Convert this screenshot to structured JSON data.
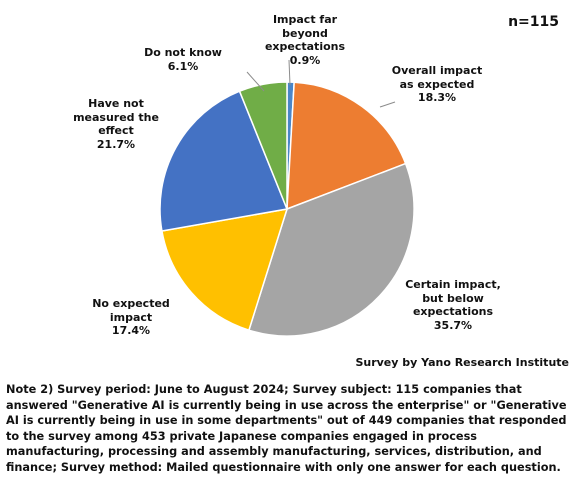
{
  "sample_size": "n=115",
  "source": "Survey by Yano Research Institute",
  "note": "Note 2) Survey period: June to August 2024; Survey subject: 115 companies that answered \"Generative AI is currently being in use across the enterprise\" or \"Generative AI is currently being in use in some departments\" out of 449 companies that responded to the survey among 453 private Japanese companies engaged in process manufacturing, processing and assembly manufacturing, services, distribution, and finance; Survey method: Mailed questionnaire with only one answer for each question.",
  "chart_data": {
    "type": "pie",
    "title": "",
    "start_angle_deg": 0,
    "direction": "clockwise",
    "legend": "none",
    "slices": [
      {
        "label_lines": [
          "Impact far",
          "beyond",
          "expectations"
        ],
        "label": "Impact far beyond expectations",
        "value": 0.9,
        "value_text": "0.9%",
        "color": "#4a86c8"
      },
      {
        "label_lines": [
          "Overall impact",
          "as expected"
        ],
        "label": "Overall impact as expected",
        "value": 18.3,
        "value_text": "18.3%",
        "color": "#ed7d31"
      },
      {
        "label_lines": [
          "Certain impact,",
          "but below",
          "expectations"
        ],
        "label": "Certain impact, but below expectations",
        "value": 35.7,
        "value_text": "35.7%",
        "color": "#a5a5a5"
      },
      {
        "label_lines": [
          "No expected",
          "impact"
        ],
        "label": "No expected impact",
        "value": 17.4,
        "value_text": "17.4%",
        "color": "#ffc000"
      },
      {
        "label_lines": [
          "Have not",
          "measured the",
          "effect"
        ],
        "label": "Have not measured the effect",
        "value": 21.7,
        "value_text": "21.7%",
        "color": "#4472c4"
      },
      {
        "label_lines": [
          "Do not know"
        ],
        "label": "Do not know",
        "value": 6.1,
        "value_text": "6.1%",
        "color": "#70ad47"
      }
    ]
  }
}
